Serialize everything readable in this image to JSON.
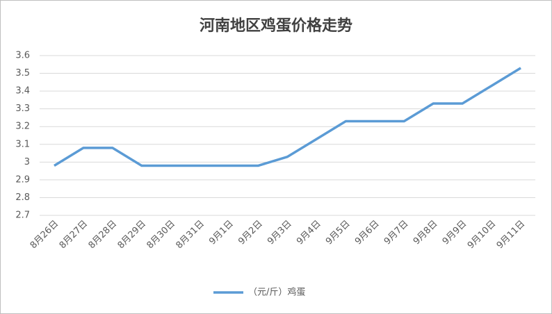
{
  "chart_data": {
    "type": "line",
    "title": "河南地区鸡蛋价格走势",
    "categories": [
      "8月26日",
      "8月27日",
      "8月28日",
      "8月29日",
      "8月30日",
      "8月31日",
      "9月1日",
      "9月2日",
      "9月3日",
      "9月4日",
      "9月5日",
      "9月6日",
      "9月7日",
      "9月8日",
      "9月9日",
      "9月10日",
      "9月11日"
    ],
    "series": [
      {
        "name": "（元/斤）鸡蛋",
        "color": "#5b9bd5",
        "values": [
          2.98,
          3.08,
          3.08,
          2.98,
          2.98,
          2.98,
          2.98,
          2.98,
          3.03,
          3.13,
          3.23,
          3.23,
          3.23,
          3.33,
          3.33,
          3.43,
          3.53
        ]
      }
    ],
    "ylim": [
      2.7,
      3.6
    ],
    "yticks": [
      2.7,
      2.8,
      2.9,
      3,
      3.1,
      3.2,
      3.3,
      3.4,
      3.5,
      3.6
    ],
    "grid": true,
    "legend": "bottom"
  }
}
